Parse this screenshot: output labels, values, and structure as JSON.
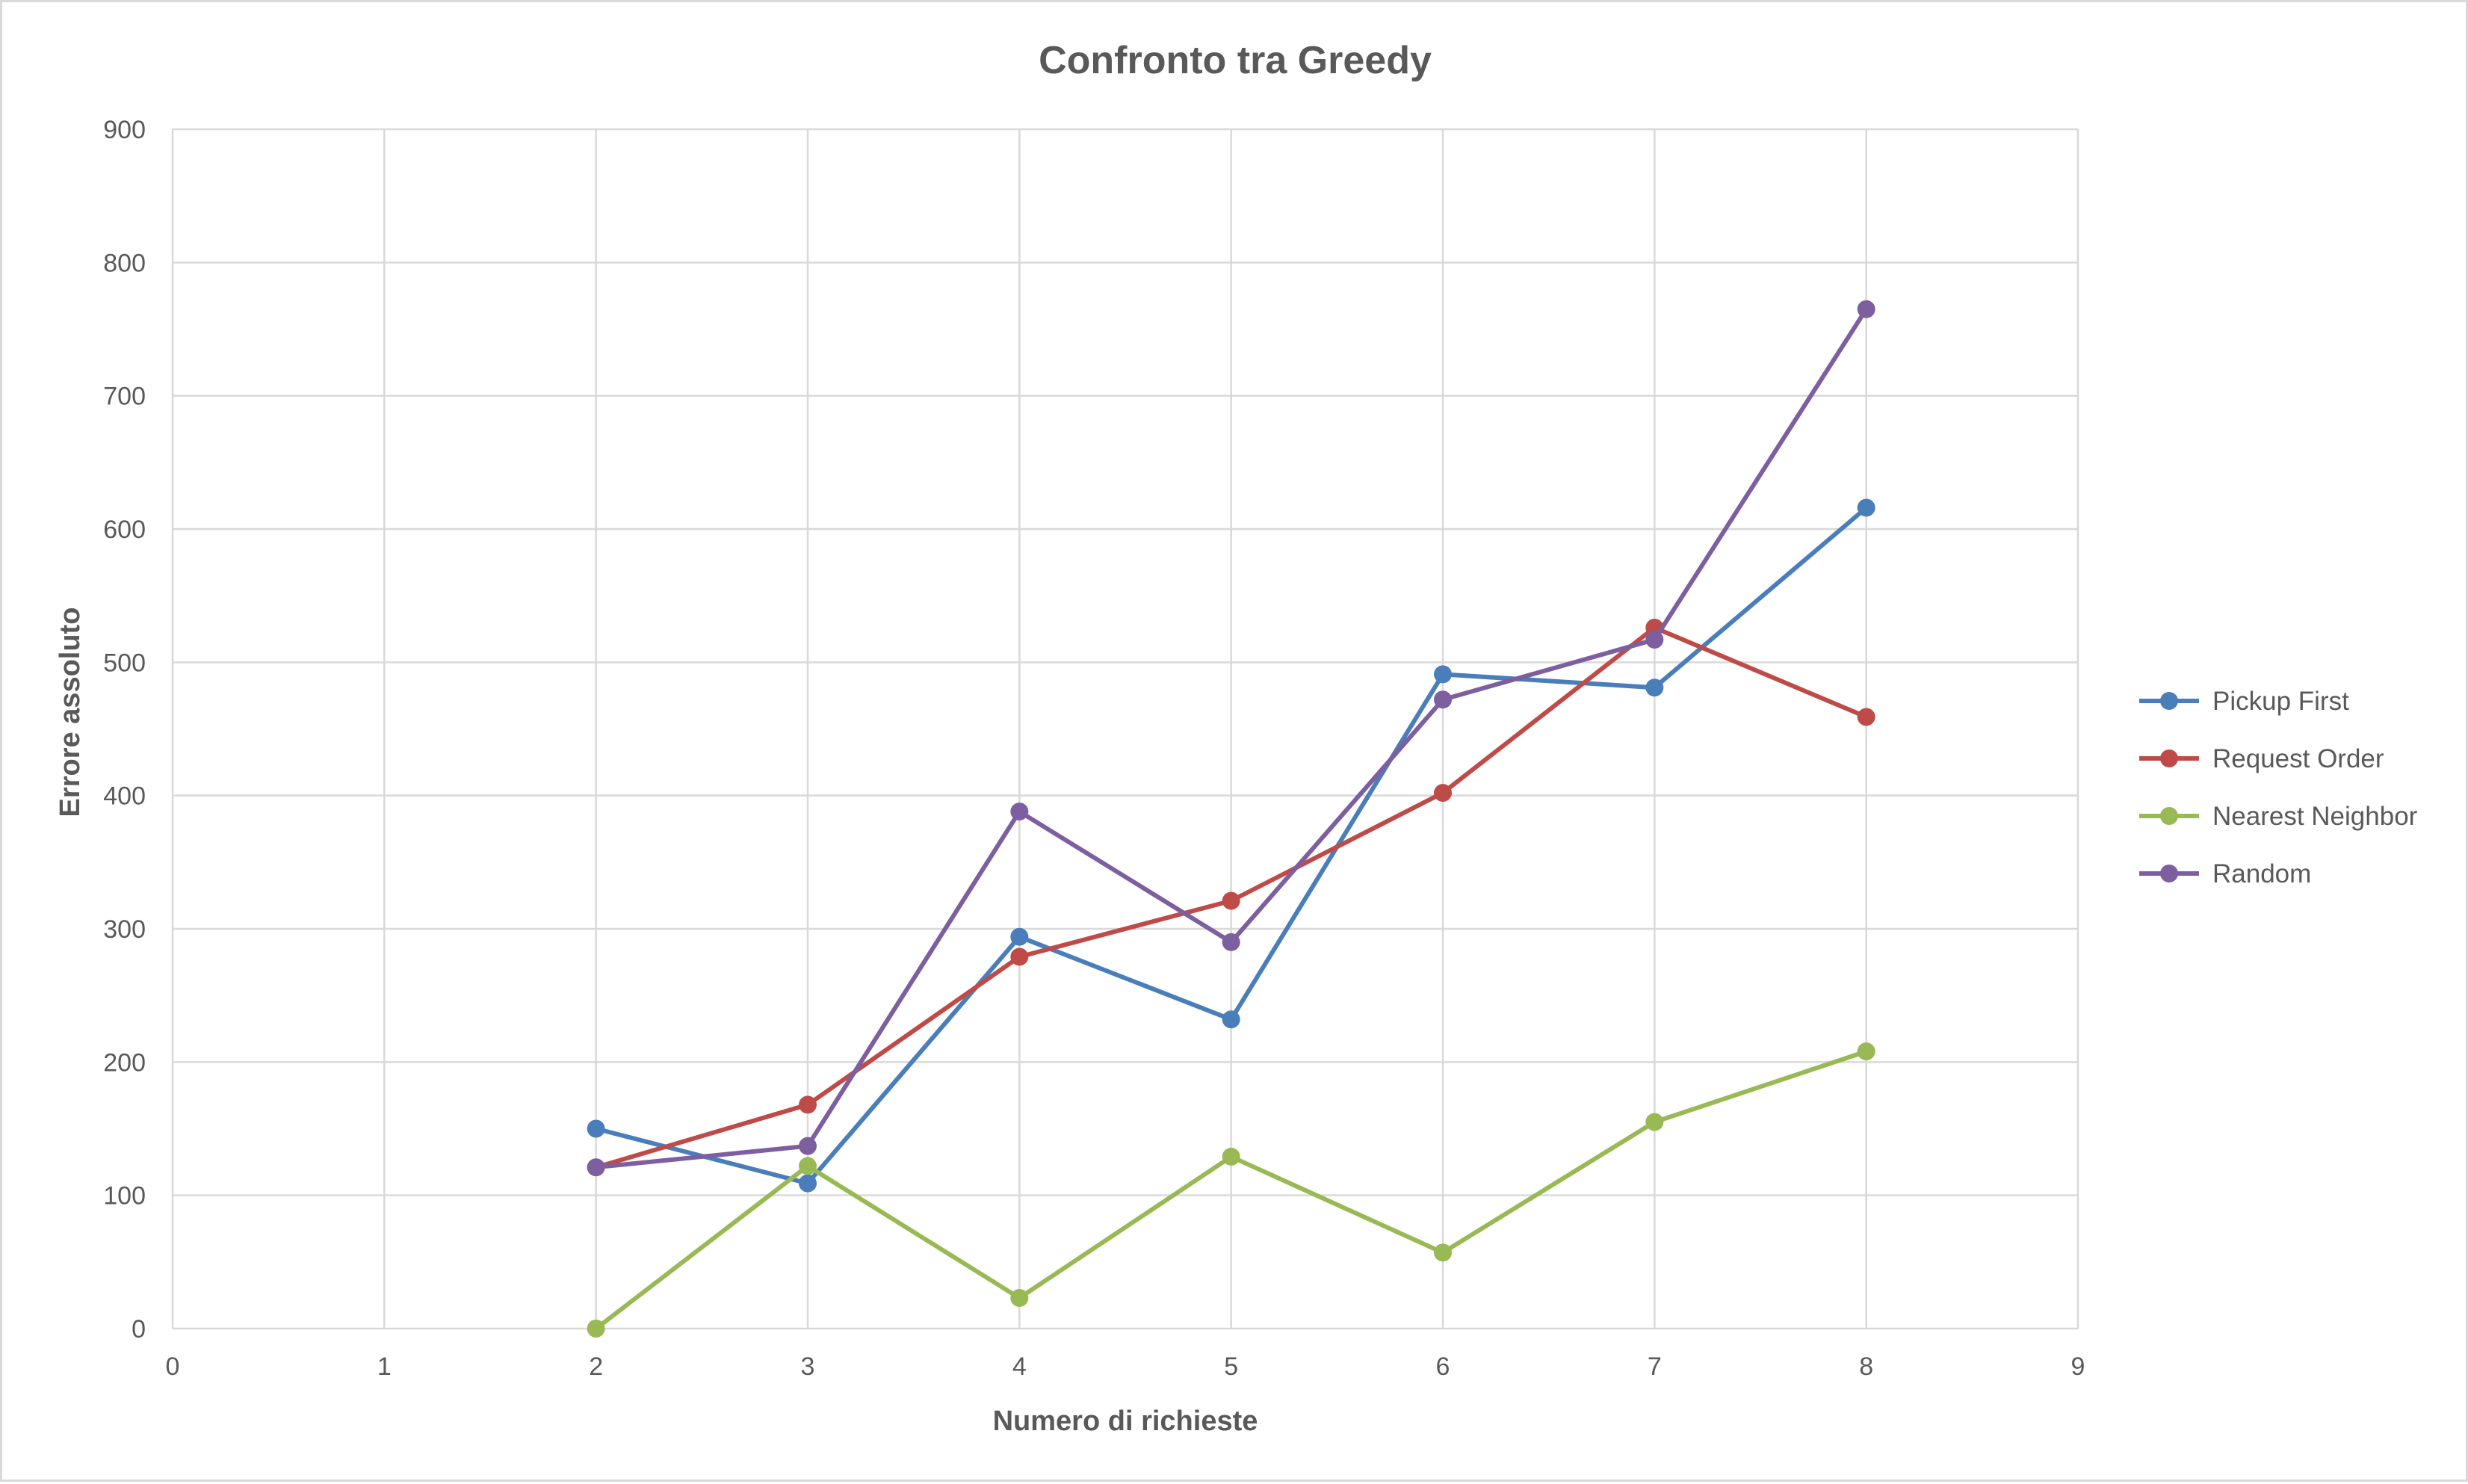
{
  "chart_data": {
    "type": "scatter",
    "title": "Confronto tra Greedy",
    "xlabel": "Numero di richieste",
    "ylabel": "Errore assoluto",
    "xlim": [
      0,
      9
    ],
    "ylim": [
      0,
      900
    ],
    "xticks": [
      0,
      1,
      2,
      3,
      4,
      5,
      6,
      7,
      8,
      9
    ],
    "yticks": [
      0,
      100,
      200,
      300,
      400,
      500,
      600,
      700,
      800,
      900
    ],
    "grid": true,
    "legend_position": "right",
    "series": [
      {
        "name": "Pickup First",
        "color": "#4a7ebb",
        "x": [
          2,
          3,
          4,
          5,
          6,
          7,
          8
        ],
        "y": [
          150,
          109,
          294,
          232,
          491,
          481,
          616
        ]
      },
      {
        "name": "Request Order",
        "color": "#be4b48",
        "x": [
          2,
          3,
          4,
          5,
          6,
          7,
          8
        ],
        "y": [
          121,
          168,
          279,
          321,
          402,
          526,
          459
        ]
      },
      {
        "name": "Nearest Neighbor",
        "color": "#98b954",
        "x": [
          2,
          3,
          4,
          5,
          6,
          7,
          8
        ],
        "y": [
          0,
          122,
          23,
          129,
          57,
          155,
          208
        ]
      },
      {
        "name": "Random",
        "color": "#7d5fa0",
        "x": [
          2,
          3,
          4,
          5,
          6,
          7,
          8
        ],
        "y": [
          121,
          137,
          388,
          290,
          472,
          517,
          765
        ]
      }
    ]
  }
}
